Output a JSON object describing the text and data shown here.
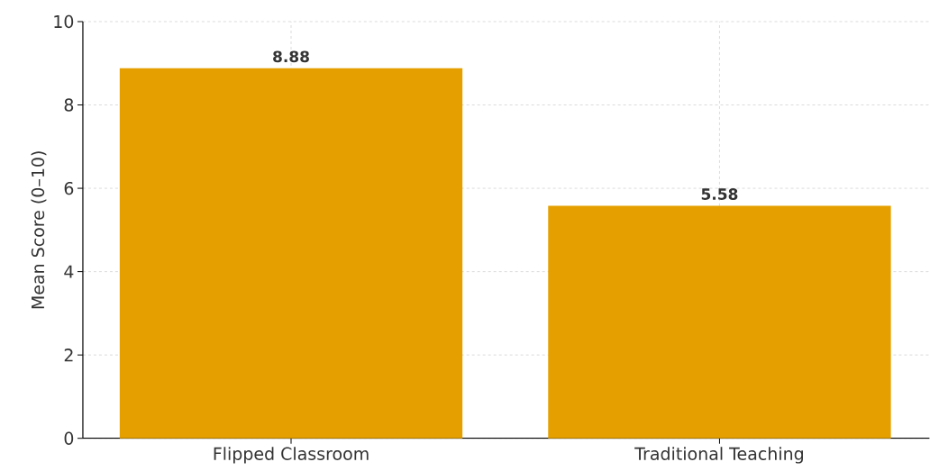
{
  "chart_data": {
    "type": "bar",
    "ylabel": "Mean Score (0–10)",
    "categories": [
      "Flipped Classroom",
      "Traditional Teaching"
    ],
    "values": [
      8.88,
      5.58
    ],
    "color": "#e5a000",
    "ylim": [
      0,
      10
    ],
    "yticks": [
      0,
      2,
      4,
      6,
      8,
      10
    ],
    "grid": true,
    "data_labels": true
  }
}
